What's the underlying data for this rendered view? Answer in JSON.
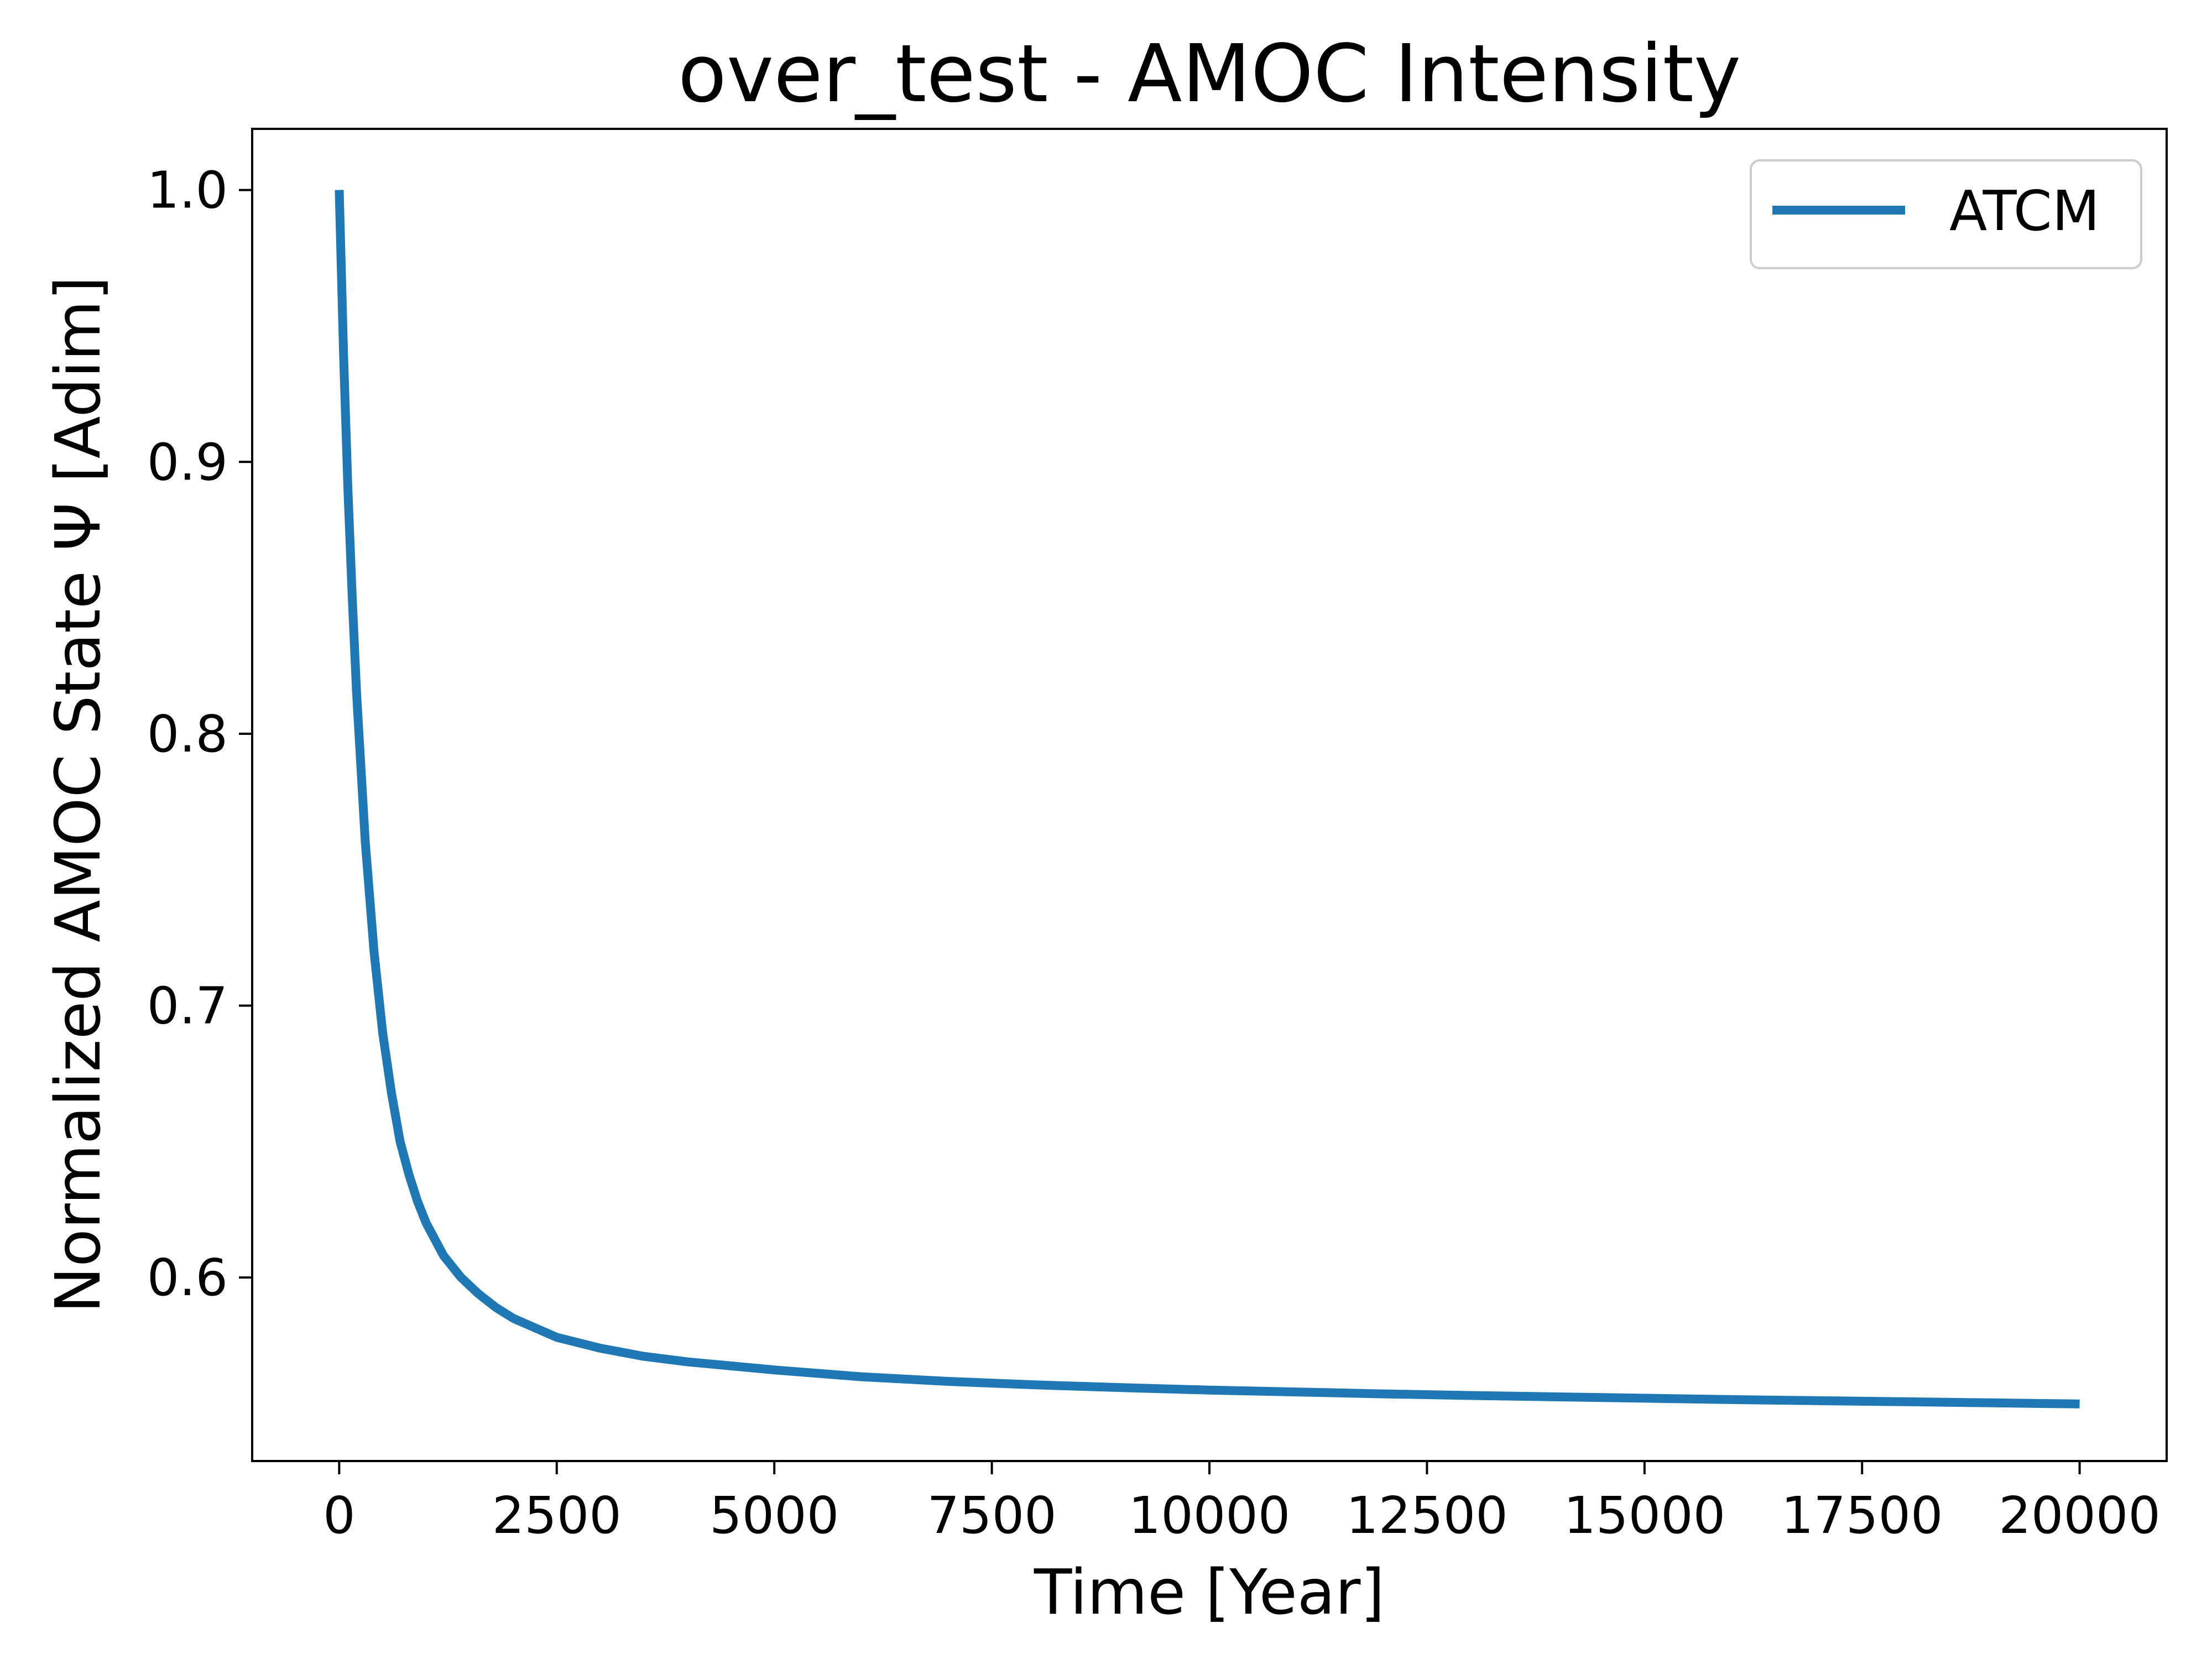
{
  "chart_data": {
    "type": "line",
    "title": "over_test - AMOC Intensity",
    "xlabel": "Time [Year]",
    "ylabel": "Normalized AMOC State Ψ [Adim]",
    "xlim": [
      -1000,
      21000
    ],
    "ylim": [
      0.5325,
      1.0225
    ],
    "xticks": [
      0,
      2500,
      5000,
      7500,
      10000,
      12500,
      15000,
      17500,
      20000
    ],
    "xtick_labels": [
      "0",
      "2500",
      "5000",
      "7500",
      "10000",
      "12500",
      "15000",
      "17500",
      "20000"
    ],
    "yticks": [
      0.6,
      0.7,
      0.8,
      0.9,
      1.0
    ],
    "ytick_labels": [
      "0.6",
      "0.7",
      "0.8",
      "0.9",
      "1.0"
    ],
    "grid": false,
    "legend_position": "top-right",
    "series": [
      {
        "name": "ATCM",
        "color": "#1f77b4",
        "x": [
          0,
          50,
          100,
          150,
          200,
          300,
          400,
          500,
          600,
          700,
          800,
          900,
          1000,
          1200,
          1400,
          1600,
          1800,
          2000,
          2500,
          3000,
          3500,
          4000,
          5000,
          6000,
          7000,
          8000,
          9000,
          10000,
          11000,
          12000,
          13000,
          14000,
          15000,
          16000,
          17000,
          18000,
          19000,
          20000
        ],
        "y": [
          1.0,
          0.94,
          0.89,
          0.85,
          0.815,
          0.76,
          0.72,
          0.69,
          0.668,
          0.65,
          0.638,
          0.628,
          0.62,
          0.608,
          0.6,
          0.594,
          0.589,
          0.585,
          0.578,
          0.574,
          0.571,
          0.569,
          0.566,
          0.5635,
          0.5618,
          0.5605,
          0.5595,
          0.5586,
          0.5579,
          0.5572,
          0.5566,
          0.5561,
          0.5556,
          0.5551,
          0.5547,
          0.5543,
          0.5539,
          0.5535
        ]
      }
    ]
  }
}
